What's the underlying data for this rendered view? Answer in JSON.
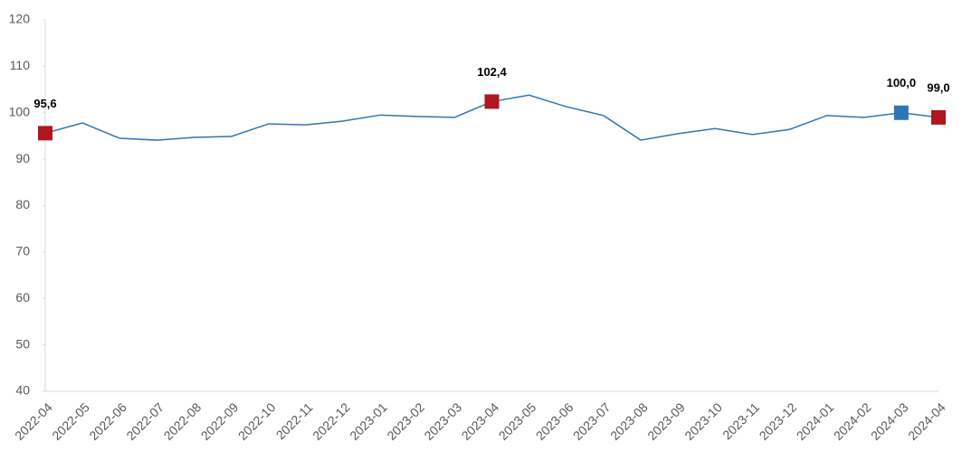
{
  "chart_data": {
    "type": "line",
    "categories": [
      "2022-04",
      "2022-05",
      "2022-06",
      "2022-07",
      "2022-08",
      "2022-09",
      "2022-10",
      "2022-11",
      "2022-12",
      "2023-01",
      "2023-02",
      "2023-03",
      "2023-04",
      "2023-05",
      "2023-06",
      "2023-07",
      "2023-08",
      "2023-09",
      "2023-10",
      "2023-11",
      "2023-12",
      "2024-01",
      "2024-02",
      "2024-03",
      "2024-04"
    ],
    "values": [
      95.6,
      97.8,
      94.5,
      94.1,
      94.7,
      94.9,
      97.6,
      97.4,
      98.2,
      99.5,
      99.2,
      99.0,
      102.4,
      103.8,
      101.3,
      99.4,
      94.1,
      95.5,
      96.6,
      95.3,
      96.4,
      99.4,
      99.0,
      100.0,
      99.0
    ],
    "value_labels": [
      "95,6",
      null,
      null,
      null,
      null,
      null,
      null,
      null,
      null,
      null,
      null,
      null,
      "102,4",
      null,
      null,
      null,
      null,
      null,
      null,
      null,
      null,
      null,
      null,
      "100,0",
      "99,0"
    ],
    "marker_colors": [
      "#b0161e",
      null,
      null,
      null,
      null,
      null,
      null,
      null,
      null,
      null,
      null,
      null,
      "#b0161e",
      null,
      null,
      null,
      null,
      null,
      null,
      null,
      null,
      null,
      null,
      "#2e75b6",
      "#b0161e"
    ],
    "color": "#2e75b6",
    "ylim": [
      40,
      120
    ],
    "yticks": [
      40,
      50,
      60,
      70,
      80,
      90,
      100,
      110,
      120
    ]
  }
}
